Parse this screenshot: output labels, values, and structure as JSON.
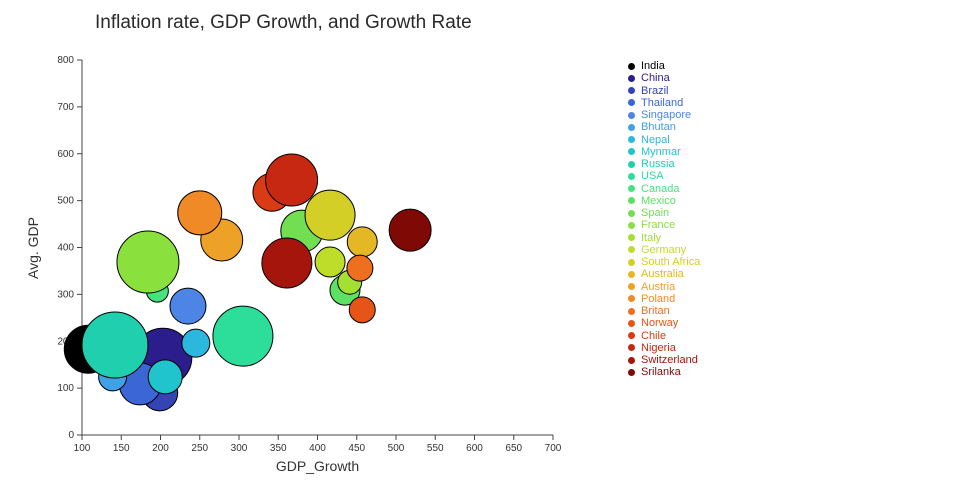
{
  "title": "Inflation rate, GDP Growth, and Growth Rate",
  "chart_data": {
    "type": "scatter",
    "subtype": "bubble",
    "title": "Inflation rate, GDP Growth, and Growth Rate",
    "xlabel": "GDP_Growth",
    "ylabel": "Avg. GDP",
    "xlim": [
      100,
      700
    ],
    "ylim": [
      0,
      800
    ],
    "x_ticks": [
      100,
      150,
      200,
      250,
      300,
      350,
      400,
      450,
      500,
      550,
      600,
      650,
      700
    ],
    "y_ticks": [
      0,
      100,
      200,
      300,
      400,
      500,
      600,
      700,
      800
    ],
    "grid": false,
    "legend_position": "right",
    "marker_stroke": "#000000",
    "points": [
      {
        "label": "India",
        "x": 108,
        "y": 183,
        "size": 24,
        "color": "#000000"
      },
      {
        "label": "China",
        "x": 203,
        "y": 166,
        "size": 29,
        "color": "#2b1d8c"
      },
      {
        "label": "Brazil",
        "x": 199,
        "y": 90,
        "size": 18,
        "color": "#3444b4"
      },
      {
        "label": "Thailand",
        "x": 174,
        "y": 109,
        "size": 21,
        "color": "#3b66d6"
      },
      {
        "label": "Singapore",
        "x": 235,
        "y": 275,
        "size": 18,
        "color": "#4c85e6"
      },
      {
        "label": "Bhutan",
        "x": 139,
        "y": 124,
        "size": 14,
        "color": "#3fa1e6"
      },
      {
        "label": "Nepal",
        "x": 245,
        "y": 196,
        "size": 14,
        "color": "#2cb8de"
      },
      {
        "label": "Mynmar",
        "x": 206,
        "y": 124,
        "size": 17,
        "color": "#20c4cc"
      },
      {
        "label": "Russia",
        "x": 142,
        "y": 192,
        "size": 33,
        "color": "#1fcfae"
      },
      {
        "label": "USA",
        "x": 305,
        "y": 211,
        "size": 30,
        "color": "#2ddd9a"
      },
      {
        "label": "Canada",
        "x": 196,
        "y": 307,
        "size": 11,
        "color": "#45e27e"
      },
      {
        "label": "Mexico",
        "x": 435,
        "y": 309,
        "size": 15,
        "color": "#5ce162"
      },
      {
        "label": "Spain",
        "x": 380,
        "y": 435,
        "size": 21,
        "color": "#71df51"
      },
      {
        "label": "France",
        "x": 184,
        "y": 369,
        "size": 31,
        "color": "#8ae03c"
      },
      {
        "label": "Italy",
        "x": 441,
        "y": 326,
        "size": 12,
        "color": "#a4df31"
      },
      {
        "label": "Germany",
        "x": 416,
        "y": 369,
        "size": 15,
        "color": "#bedd2a"
      },
      {
        "label": "South Africa",
        "x": 416,
        "y": 469,
        "size": 25,
        "color": "#d4cf26"
      },
      {
        "label": "Australia",
        "x": 457,
        "y": 412,
        "size": 15,
        "color": "#e4b725"
      },
      {
        "label": "Austria",
        "x": 278,
        "y": 416,
        "size": 21,
        "color": "#eda227"
      },
      {
        "label": "Poland",
        "x": 250,
        "y": 474,
        "size": 22,
        "color": "#ef8a26"
      },
      {
        "label": "Britan",
        "x": 454,
        "y": 356,
        "size": 13,
        "color": "#ee701f"
      },
      {
        "label": "Norway",
        "x": 457,
        "y": 267,
        "size": 13,
        "color": "#e65418"
      },
      {
        "label": "Chile",
        "x": 342,
        "y": 518,
        "size": 19,
        "color": "#da3b14"
      },
      {
        "label": "Nigeria",
        "x": 367,
        "y": 544,
        "size": 26,
        "color": "#c62811"
      },
      {
        "label": "Switzerland",
        "x": 361,
        "y": 367,
        "size": 25,
        "color": "#a5150c"
      },
      {
        "label": "Srilanka",
        "x": 518,
        "y": 437,
        "size": 21,
        "color": "#7f0a05"
      }
    ]
  }
}
